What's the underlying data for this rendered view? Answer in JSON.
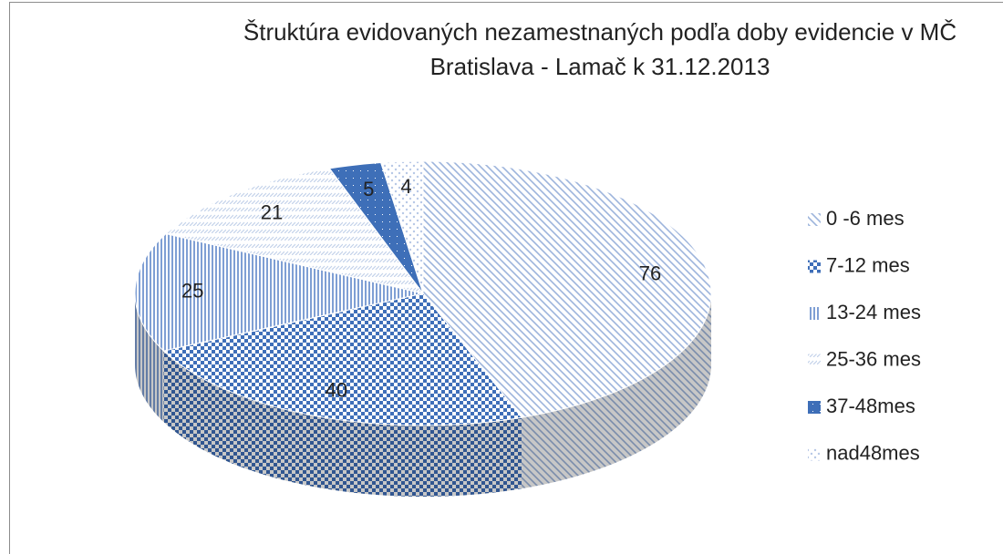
{
  "chart_data": {
    "type": "pie",
    "title": "Štruktúra evidovaných nezamestnaných podľa doby evidencie v MČ Bratislava - Lamač k 31.12.2013",
    "categories": [
      "0 -6 mes",
      "7-12 mes",
      "13-24 mes",
      "25-36 mes",
      "37-48mes",
      "nad48mes"
    ],
    "values": [
      76,
      40,
      25,
      21,
      5,
      4
    ],
    "colors": [
      "#9db4dc",
      "#3f6fb9",
      "#7f9fd4",
      "#c3d2ea",
      "#3e6fb8",
      "#b7c8e6"
    ],
    "legend": "right"
  }
}
